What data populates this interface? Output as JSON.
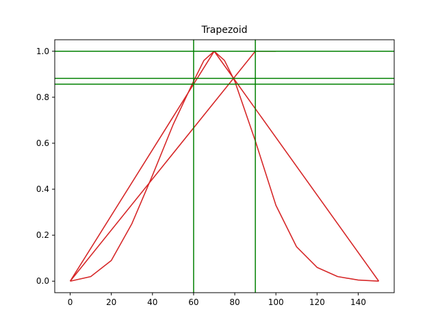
{
  "chart_data": {
    "type": "line",
    "title": "Trapezoid",
    "xlabel": "",
    "ylabel": "",
    "xlim": [
      -7.5,
      157.5
    ],
    "ylim": [
      -0.05,
      1.05
    ],
    "xticks": [
      0,
      20,
      40,
      60,
      80,
      100,
      120,
      140
    ],
    "yticks": [
      0.0,
      0.2,
      0.4,
      0.6,
      0.8,
      1.0
    ],
    "xtick_labels": [
      "0",
      "20",
      "40",
      "60",
      "80",
      "100",
      "120",
      "140"
    ],
    "ytick_labels": [
      "0.0",
      "0.2",
      "0.4",
      "0.6",
      "0.8",
      "1.0"
    ],
    "grid": false,
    "series": [
      {
        "color": "#d62728",
        "x": [
          0,
          70,
          150
        ],
        "y": [
          0,
          1,
          0
        ]
      },
      {
        "color": "#d62728",
        "x": [
          0,
          10,
          20,
          30,
          40,
          50,
          60,
          65,
          70,
          75,
          80,
          90,
          100,
          110,
          120,
          130,
          140,
          150
        ],
        "y": [
          0.0,
          0.02,
          0.09,
          0.25,
          0.46,
          0.68,
          0.87,
          0.96,
          1.0,
          0.96,
          0.87,
          0.61,
          0.33,
          0.15,
          0.06,
          0.02,
          0.005,
          0.0
        ]
      },
      {
        "color": "#d62728",
        "x": [
          0,
          90,
          100
        ],
        "y": [
          0,
          1,
          1
        ]
      }
    ],
    "reference_lines": {
      "color": "#008000",
      "vertical_x": [
        60,
        90
      ],
      "horizontal_y": [
        1.0,
        0.882,
        0.857
      ]
    }
  }
}
